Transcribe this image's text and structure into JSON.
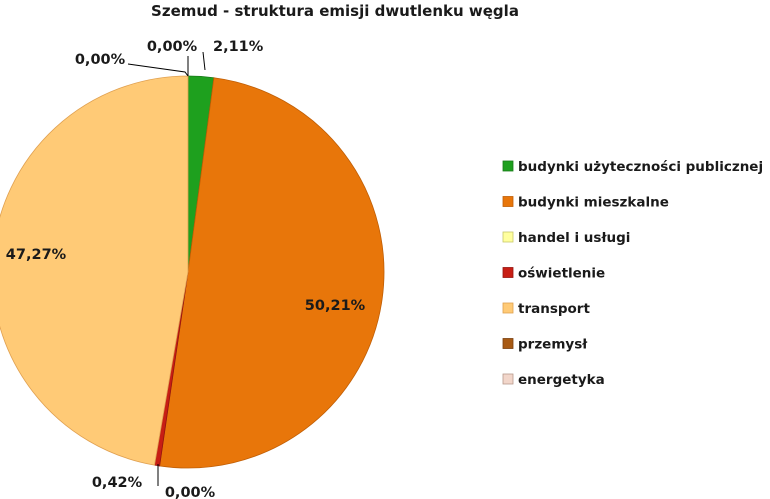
{
  "chart_data": {
    "type": "pie",
    "title": "Szemud - struktura emisji dwutlenku węgla",
    "legend_position": "right",
    "start_angle": "12 o'clock",
    "direction": "clockwise",
    "slices": [
      {
        "name": "budynki użyteczności publicznej",
        "value": 2.11,
        "label": "2,11%",
        "color": "#1ea01e",
        "edge": "#1a7a1a"
      },
      {
        "name": "budynki mieszkalne",
        "value": 50.21,
        "label": "50,21%",
        "color": "#e8760a",
        "edge": "#c05e05"
      },
      {
        "name": "handel i usługi",
        "value": 0.0,
        "label": "0,00%",
        "color": "#ffff9e",
        "edge": "#c8c86a"
      },
      {
        "name": "oświetlenie",
        "value": 0.42,
        "label": "0,42%",
        "color": "#c81e14",
        "edge": "#961410"
      },
      {
        "name": "transport",
        "value": 47.27,
        "label": "47,27%",
        "color": "#ffca76",
        "edge": "#e0a050"
      },
      {
        "name": "przemysł",
        "value": 0.0,
        "label": "0,00%",
        "color": "#a85a14",
        "edge": "#7a4010"
      },
      {
        "name": "energetyka",
        "value": 0.0,
        "label": "0,00%",
        "color": "#f2d6ca",
        "edge": "#b89a8c"
      }
    ]
  }
}
